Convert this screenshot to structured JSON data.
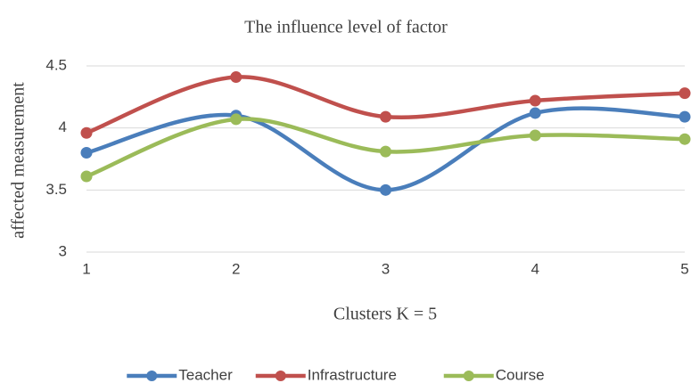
{
  "chart_data": {
    "type": "line",
    "title": "The influence level of factor",
    "xlabel": "Clusters K = 5",
    "ylabel": "affected measurement",
    "categories": [
      "1",
      "2",
      "3",
      "4",
      "5"
    ],
    "series": [
      {
        "name": "Teacher",
        "color": "#4a7ebb",
        "values": [
          3.8,
          4.1,
          3.5,
          4.12,
          4.09
        ]
      },
      {
        "name": "Infrastructure",
        "color": "#c0504d",
        "values": [
          3.96,
          4.41,
          4.09,
          4.22,
          4.28
        ]
      },
      {
        "name": "Course",
        "color": "#9bbb59",
        "values": [
          3.61,
          4.07,
          3.81,
          3.94,
          3.91
        ]
      }
    ],
    "ylim": [
      3,
      4.5
    ],
    "yticks": [
      3,
      3.5,
      4,
      4.5
    ],
    "grid": true,
    "smooth": true,
    "legend": "bottom"
  }
}
